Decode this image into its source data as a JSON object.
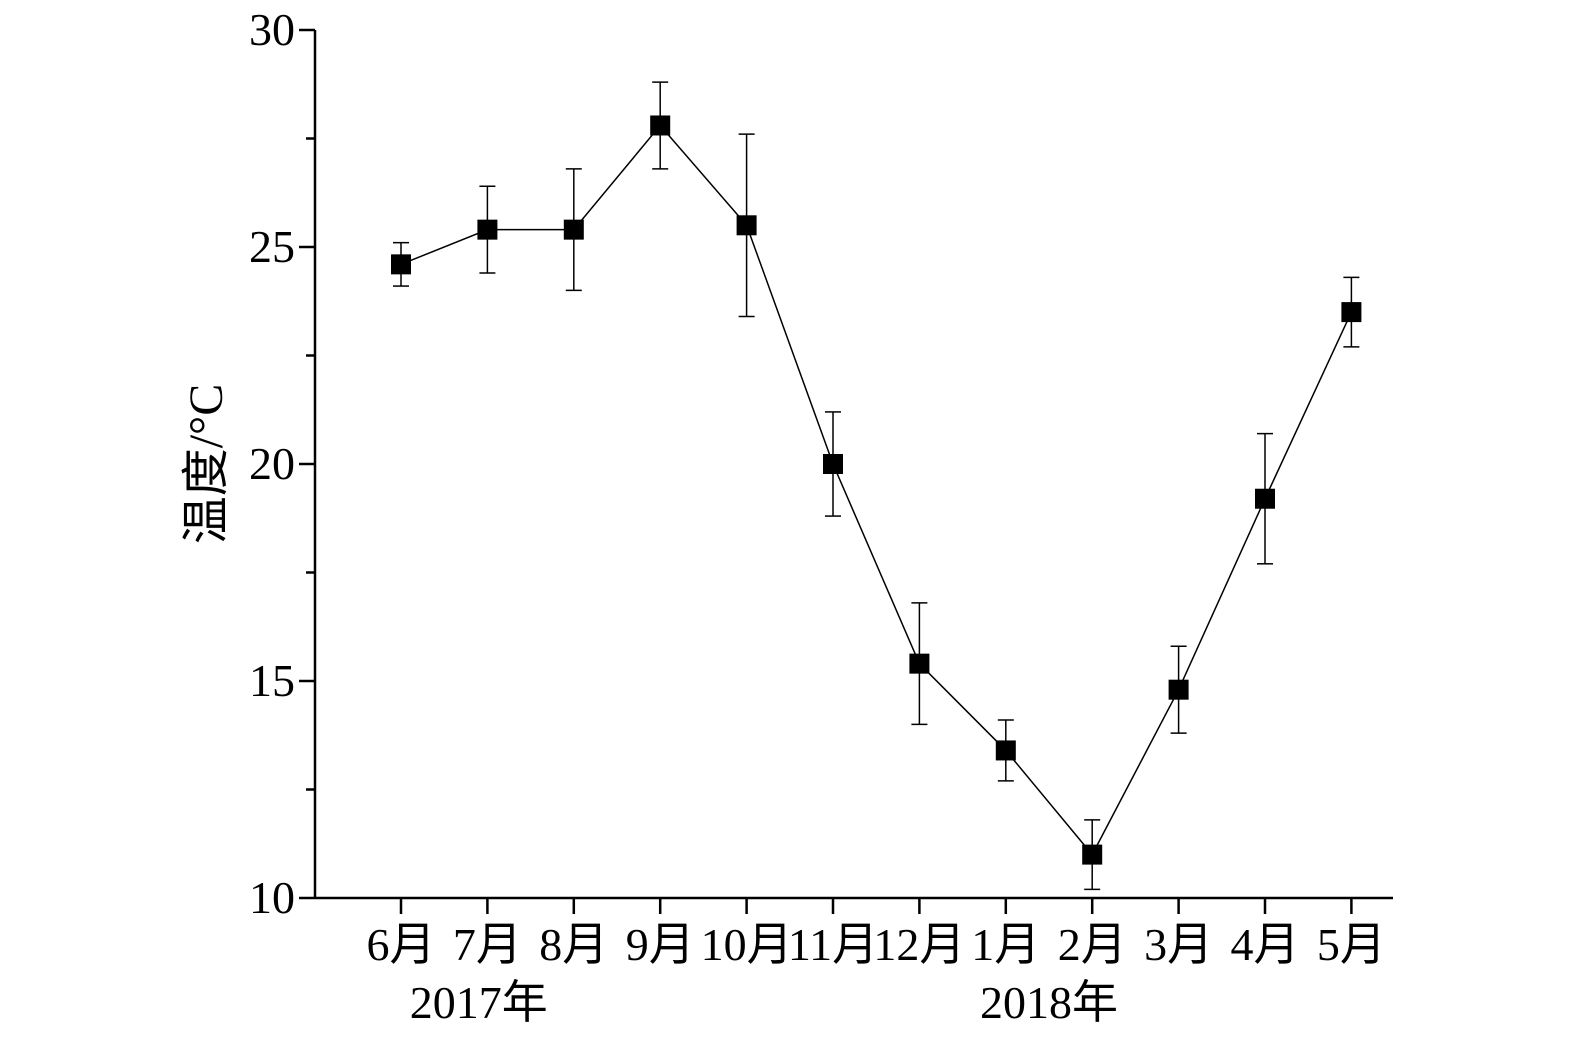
{
  "chart_data": {
    "type": "line",
    "ylabel": "温度/°C",
    "ylim": [
      10,
      30
    ],
    "yticks": [
      "10",
      "15",
      "20",
      "25",
      "30"
    ],
    "categories": [
      "6月",
      "7月",
      "8月",
      "9月",
      "10月",
      "11月",
      "12月",
      "1月",
      "2月",
      "3月",
      "4月",
      "5月"
    ],
    "year_labels": [
      {
        "text": "2017年",
        "category_index": 0.9
      },
      {
        "text": "2018年",
        "category_index": 7.5
      }
    ],
    "series": [
      {
        "values": [
          24.6,
          25.4,
          25.4,
          27.8,
          25.5,
          20.0,
          15.4,
          13.4,
          11.0,
          14.8,
          19.2,
          23.5
        ],
        "error": [
          0.5,
          1.0,
          1.4,
          1.0,
          2.1,
          1.2,
          1.4,
          0.7,
          0.8,
          1.0,
          1.5,
          0.8
        ],
        "marker": "square",
        "color": "#000000"
      }
    ],
    "grid": false,
    "legend": "none"
  }
}
